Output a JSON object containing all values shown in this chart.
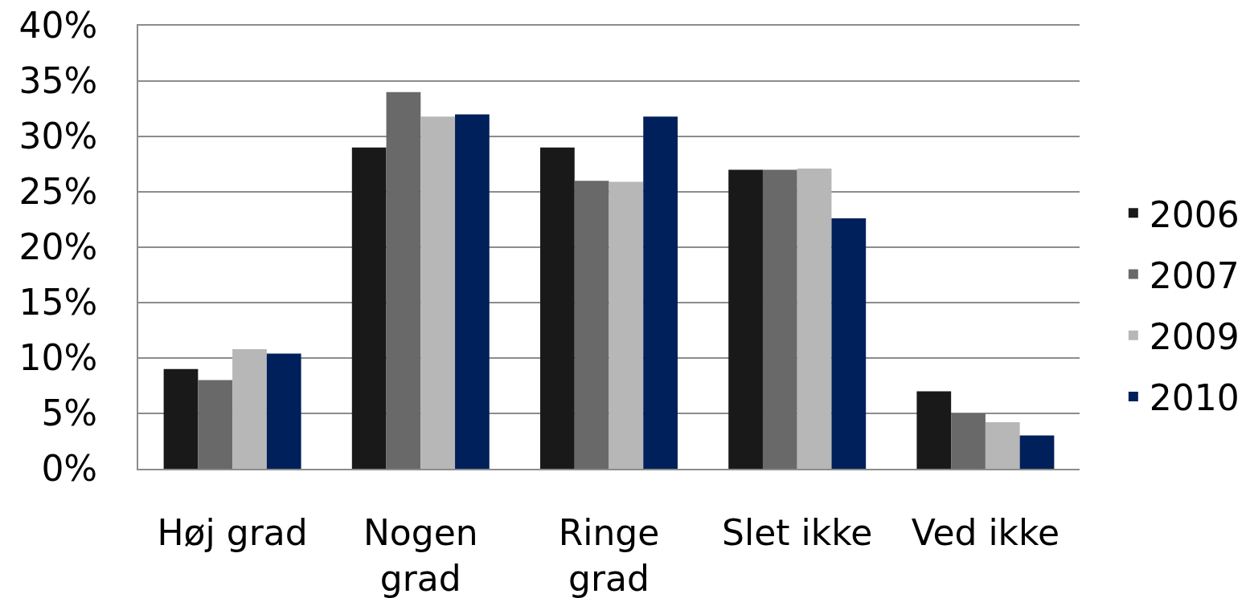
{
  "chart_data": {
    "type": "bar",
    "categories": [
      "Høj grad",
      "Nogen grad",
      "Ringe grad",
      "Slet ikke",
      "Ved ikke"
    ],
    "series": [
      {
        "name": "2006",
        "color": "#1a1919",
        "values": [
          9,
          29,
          29,
          27,
          7
        ]
      },
      {
        "name": "2007",
        "color": "#696969",
        "values": [
          8,
          34,
          26,
          27,
          5
        ]
      },
      {
        "name": "2009",
        "color": "#b7b7b7",
        "values": [
          10.8,
          31.8,
          25.9,
          27.1,
          4.2
        ]
      },
      {
        "name": "2010",
        "color": "#00205b",
        "values": [
          10.4,
          32,
          31.8,
          22.6,
          3
        ]
      }
    ],
    "ylim": [
      0,
      40
    ],
    "yticks": [
      {
        "value": 0,
        "label": "0%"
      },
      {
        "value": 5,
        "label": "5%"
      },
      {
        "value": 10,
        "label": "10%"
      },
      {
        "value": 15,
        "label": "15%"
      },
      {
        "value": 20,
        "label": "20%"
      },
      {
        "value": 25,
        "label": "25%"
      },
      {
        "value": 30,
        "label": "30%"
      },
      {
        "value": 35,
        "label": "35%"
      },
      {
        "value": 40,
        "label": "40%"
      }
    ],
    "grid": "y",
    "legend": "right"
  }
}
